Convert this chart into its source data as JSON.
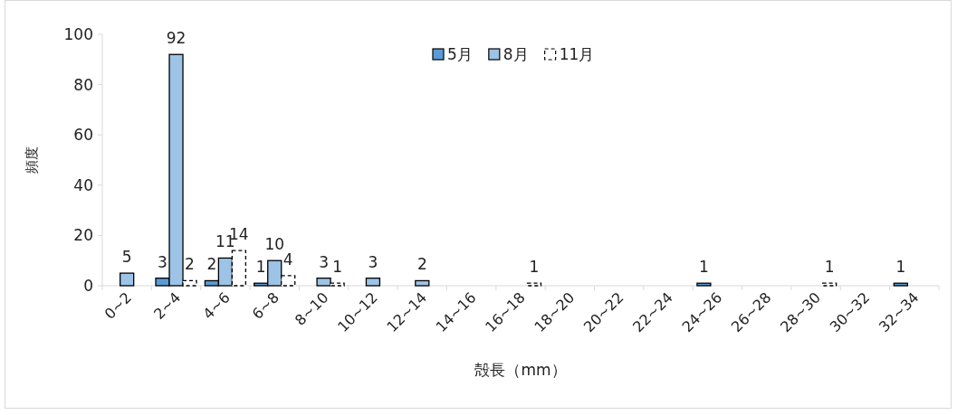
{
  "chart_data": {
    "type": "bar",
    "xlabel": "殻長（mm）",
    "ylabel": "頻度",
    "categories": [
      "0~2",
      "2~4",
      "4~6",
      "6~8",
      "8~10",
      "10~12",
      "12~14",
      "14~16",
      "16~18",
      "18~20",
      "20~22",
      "22~24",
      "24~26",
      "26~28",
      "28~30",
      "30~32",
      "32~34"
    ],
    "series": [
      {
        "name": "5月",
        "color": "#5b9bd5",
        "values": [
          0,
          3,
          2,
          1,
          0,
          0,
          0,
          0,
          0,
          0,
          0,
          0,
          1,
          0,
          0,
          0,
          1
        ],
        "value_labels": [
          null,
          "3",
          "2",
          "1",
          null,
          null,
          null,
          null,
          null,
          null,
          null,
          null,
          "1",
          null,
          null,
          null,
          "1"
        ]
      },
      {
        "name": "8月",
        "color": "#9dc3e6",
        "values": [
          5,
          92,
          11,
          10,
          3,
          3,
          2,
          0,
          0,
          0,
          0,
          0,
          0,
          0,
          0,
          0,
          0
        ],
        "value_labels": [
          "5",
          "92",
          "11",
          "10",
          "3",
          "3",
          "2",
          null,
          null,
          null,
          null,
          null,
          null,
          null,
          null,
          null,
          null
        ]
      },
      {
        "name": "11月",
        "color": "#ffffff",
        "line_style": "dashed",
        "values": [
          0,
          2,
          14,
          4,
          1,
          0,
          0,
          0,
          1,
          0,
          0,
          0,
          0,
          0,
          1,
          0,
          0
        ],
        "value_labels": [
          null,
          "2",
          "14",
          "4",
          "1",
          null,
          null,
          null,
          "1",
          null,
          null,
          null,
          null,
          null,
          "1",
          null,
          null
        ]
      }
    ],
    "ylim": [
      0,
      100
    ],
    "yticks": [
      0,
      20,
      40,
      60,
      80,
      100
    ],
    "grid": false,
    "legend": "top"
  }
}
